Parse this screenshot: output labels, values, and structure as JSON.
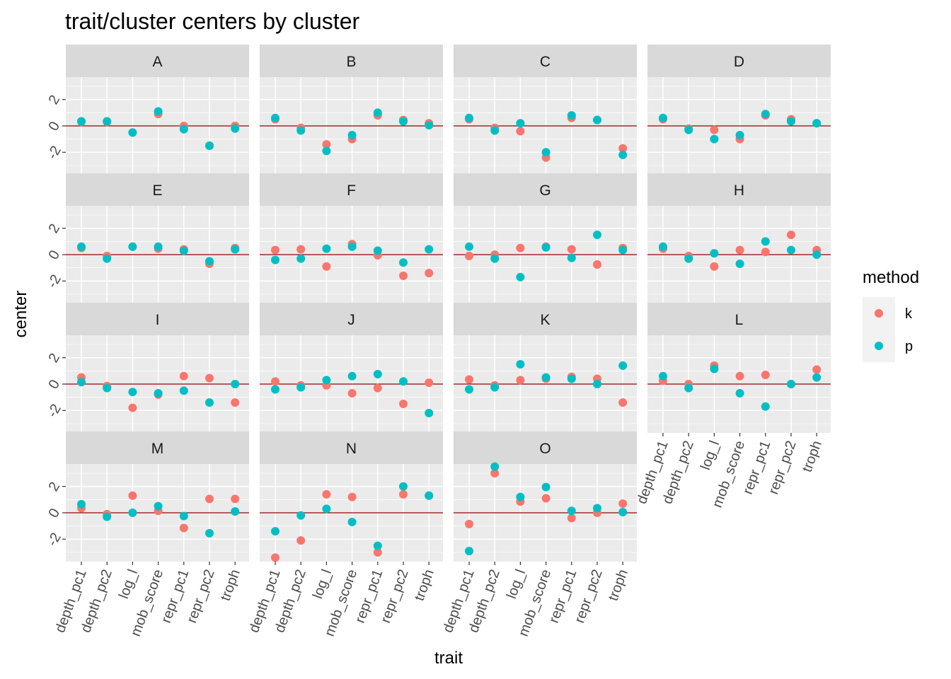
{
  "chart_data": {
    "type": "scatter",
    "title": "trait/cluster centers by cluster",
    "xlabel": "trait",
    "ylabel": "center",
    "categories": [
      "depth_pc1",
      "depth_pc2",
      "log_l",
      "mob_score",
      "repr_pc1",
      "repr_pc2",
      "troph"
    ],
    "ylim": [
      -3.7,
      3.7
    ],
    "yticks": [
      -2,
      0,
      2
    ],
    "reference_line": 0,
    "legend": {
      "title": "method",
      "position": "right",
      "entries": [
        {
          "name": "k",
          "color": "#F8766D"
        },
        {
          "name": "p",
          "color": "#00BFC4"
        }
      ]
    },
    "colors": {
      "panel_bg": "#EBEBEB",
      "grid": "#FFFFFF",
      "strip_bg": "#D9D9D9",
      "reference_line": "#8B0000",
      "tick": "#333333"
    },
    "facets": [
      {
        "label": "A",
        "series": [
          {
            "name": "k",
            "values": [
              0.3,
              0.3,
              -0.5,
              0.9,
              0.0,
              -1.5,
              0.0
            ]
          },
          {
            "name": "p",
            "values": [
              0.35,
              0.35,
              -0.5,
              1.1,
              -0.25,
              -1.5,
              -0.2
            ]
          }
        ]
      },
      {
        "label": "B",
        "series": [
          {
            "name": "k",
            "values": [
              0.5,
              -0.15,
              -1.4,
              -1.0,
              0.8,
              0.45,
              0.2
            ]
          },
          {
            "name": "p",
            "values": [
              0.6,
              -0.35,
              -1.9,
              -0.7,
              1.0,
              0.35,
              0.05
            ]
          }
        ]
      },
      {
        "label": "C",
        "series": [
          {
            "name": "k",
            "values": [
              0.5,
              -0.15,
              -0.4,
              -2.4,
              0.6,
              0.45,
              -1.7
            ]
          },
          {
            "name": "p",
            "values": [
              0.6,
              -0.35,
              0.2,
              -2.0,
              0.8,
              0.45,
              -2.2
            ]
          }
        ]
      },
      {
        "label": "D",
        "series": [
          {
            "name": "k",
            "values": [
              0.5,
              -0.2,
              -0.3,
              -1.0,
              0.8,
              0.5,
              0.2
            ]
          },
          {
            "name": "p",
            "values": [
              0.6,
              -0.3,
              -1.0,
              -0.7,
              0.9,
              0.35,
              0.2
            ]
          }
        ]
      },
      {
        "label": "E",
        "series": [
          {
            "name": "k",
            "values": [
              0.5,
              -0.1,
              0.6,
              0.45,
              0.4,
              -0.7,
              0.5
            ]
          },
          {
            "name": "p",
            "values": [
              0.6,
              -0.3,
              0.6,
              0.6,
              0.3,
              -0.5,
              0.4
            ]
          }
        ]
      },
      {
        "label": "F",
        "series": [
          {
            "name": "k",
            "values": [
              0.35,
              0.4,
              -0.9,
              0.8,
              -0.05,
              -1.6,
              -1.4
            ]
          },
          {
            "name": "p",
            "values": [
              -0.4,
              -0.3,
              0.45,
              0.6,
              0.3,
              -0.6,
              0.4
            ]
          }
        ]
      },
      {
        "label": "G",
        "series": [
          {
            "name": "k",
            "values": [
              -0.1,
              0.0,
              0.5,
              0.6,
              0.4,
              -0.75,
              0.5
            ]
          },
          {
            "name": "p",
            "values": [
              0.6,
              -0.3,
              -1.7,
              0.55,
              -0.25,
              1.5,
              0.35
            ]
          }
        ]
      },
      {
        "label": "H",
        "series": [
          {
            "name": "k",
            "values": [
              0.45,
              -0.1,
              -0.9,
              0.35,
              0.2,
              1.5,
              0.35
            ]
          },
          {
            "name": "p",
            "values": [
              0.6,
              -0.3,
              0.1,
              -0.7,
              1.0,
              0.35,
              0.0
            ]
          }
        ]
      },
      {
        "label": "I",
        "series": [
          {
            "name": "k",
            "values": [
              0.5,
              -0.15,
              -1.8,
              -0.8,
              0.6,
              0.45,
              -1.4
            ]
          },
          {
            "name": "p",
            "values": [
              0.15,
              -0.3,
              -0.6,
              -0.7,
              -0.5,
              -1.4,
              0.0
            ]
          }
        ]
      },
      {
        "label": "J",
        "series": [
          {
            "name": "k",
            "values": [
              0.2,
              -0.1,
              -0.1,
              -0.7,
              -0.3,
              -1.5,
              0.1
            ]
          },
          {
            "name": "p",
            "values": [
              -0.4,
              -0.25,
              0.3,
              0.6,
              0.75,
              0.2,
              -2.2
            ]
          }
        ]
      },
      {
        "label": "K",
        "series": [
          {
            "name": "k",
            "values": [
              0.35,
              -0.1,
              0.3,
              0.4,
              0.55,
              0.4,
              -1.4
            ]
          },
          {
            "name": "p",
            "values": [
              -0.4,
              -0.25,
              1.5,
              0.5,
              0.4,
              0.0,
              1.4
            ]
          }
        ]
      },
      {
        "label": "L",
        "series": [
          {
            "name": "k",
            "values": [
              0.25,
              0.0,
              1.4,
              0.6,
              0.7,
              0.0,
              1.1
            ]
          },
          {
            "name": "p",
            "values": [
              0.6,
              -0.3,
              1.15,
              -0.7,
              -1.7,
              0.0,
              0.5
            ]
          }
        ]
      },
      {
        "label": "M",
        "series": [
          {
            "name": "k",
            "values": [
              0.35,
              -0.1,
              1.3,
              0.15,
              -1.15,
              1.05,
              1.05
            ]
          },
          {
            "name": "p",
            "values": [
              0.65,
              -0.3,
              0.0,
              0.5,
              -0.25,
              -1.55,
              0.1
            ]
          }
        ]
      },
      {
        "label": "N",
        "series": [
          {
            "name": "k",
            "values": [
              -3.4,
              -2.1,
              1.4,
              1.2,
              -3.0,
              1.4,
              1.3
            ]
          },
          {
            "name": "p",
            "values": [
              -1.4,
              -0.2,
              0.3,
              -0.7,
              -2.5,
              2.0,
              1.3
            ]
          }
        ]
      },
      {
        "label": "O",
        "series": [
          {
            "name": "k",
            "values": [
              -0.85,
              3.0,
              0.85,
              1.1,
              -0.4,
              0.0,
              0.7
            ]
          },
          {
            "name": "p",
            "values": [
              -2.9,
              3.5,
              1.2,
              1.95,
              0.15,
              0.35,
              0.05
            ]
          }
        ]
      }
    ]
  }
}
